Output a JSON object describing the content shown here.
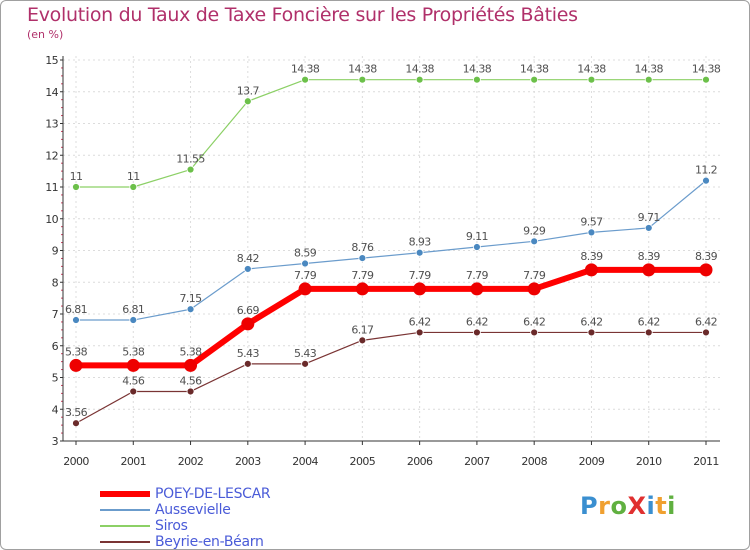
{
  "header": {
    "title": "Evolution du Taux de Taxe Foncière sur les Propriétés Bâties",
    "unit": "(en %)"
  },
  "logo": {
    "text": "ProXiti",
    "letters": [
      {
        "char": "P",
        "color": "#3a8fd0"
      },
      {
        "char": "r",
        "color": "#f0a030"
      },
      {
        "char": "o",
        "color": "#60b040"
      },
      {
        "char": "X",
        "color": "#e03030"
      },
      {
        "char": "i",
        "color": "#3a8fd0"
      },
      {
        "char": "t",
        "color": "#f0a030"
      },
      {
        "char": "i",
        "color": "#60b040"
      }
    ]
  },
  "chart_data": {
    "type": "line",
    "title": "Evolution du Taux de Taxe Foncière sur les Propriétés Bâties",
    "ylabel": "(en %)",
    "xlabel": "",
    "x": [
      "2000",
      "2001",
      "2002",
      "2003",
      "2004",
      "2005",
      "2006",
      "2007",
      "2008",
      "2009",
      "2010",
      "2011"
    ],
    "ylim": [
      3,
      15
    ],
    "yticks": [
      3,
      4,
      5,
      6,
      7,
      8,
      9,
      10,
      11,
      12,
      13,
      14,
      15
    ],
    "grid": true,
    "legend_position": "bottom-left",
    "series": [
      {
        "name": "Siros",
        "color": "#8cd066",
        "marker": "#6cc04a",
        "width": 1.2,
        "marker_r": 3.5,
        "values": [
          11,
          11,
          11.55,
          13.7,
          14.38,
          14.38,
          14.38,
          14.38,
          14.38,
          14.38,
          14.38,
          14.38
        ],
        "labels": [
          "11",
          "11",
          "11.55",
          "13.7",
          "14.38",
          "14.38",
          "14.38",
          "14.38",
          "14.38",
          "14.38",
          "14.38",
          "14.38"
        ]
      },
      {
        "name": "Aussevielle",
        "color": "#6b9ccc",
        "marker": "#4a88c0",
        "width": 1.2,
        "marker_r": 3.5,
        "values": [
          6.81,
          6.81,
          7.15,
          8.42,
          8.59,
          8.76,
          8.93,
          9.11,
          9.29,
          9.57,
          9.71,
          11.2
        ],
        "labels": [
          "6.81",
          "6.81",
          "7.15",
          "8.42",
          "8.59",
          "8.76",
          "8.93",
          "9.11",
          "9.29",
          "9.57",
          "9.71",
          "11.2"
        ]
      },
      {
        "name": "Beyrie-en-Béarn",
        "color": "#7a3434",
        "marker": "#6a2a2a",
        "width": 1.2,
        "marker_r": 3.5,
        "values": [
          3.56,
          4.56,
          4.56,
          5.43,
          5.43,
          6.17,
          6.42,
          6.42,
          6.42,
          6.42,
          6.42,
          6.42
        ],
        "labels": [
          "3.56",
          "4.56",
          "4.56",
          "5.43",
          "5.43",
          "6.17",
          "6.42",
          "6.42",
          "6.42",
          "6.42",
          "6.42",
          "6.42"
        ]
      },
      {
        "name": "POEY-DE-LESCAR",
        "color": "#ff0000",
        "marker": "#ee0000",
        "width": 6,
        "marker_r": 6.5,
        "values": [
          5.38,
          5.38,
          5.38,
          6.69,
          7.79,
          7.79,
          7.79,
          7.79,
          7.79,
          8.39,
          8.39,
          8.39
        ],
        "labels": [
          "5.38",
          "5.38",
          "5.38",
          "6.69",
          "7.79",
          "7.79",
          "7.79",
          "7.79",
          "7.79",
          "8.39",
          "8.39",
          "8.39"
        ]
      }
    ],
    "legend": [
      {
        "name": "POEY-DE-LESCAR",
        "color": "#ff0000",
        "width": 6
      },
      {
        "name": "Aussevielle",
        "color": "#6b9ccc",
        "width": 2
      },
      {
        "name": "Siros",
        "color": "#8cd066",
        "width": 2
      },
      {
        "name": "Beyrie-en-Béarn",
        "color": "#7a3434",
        "width": 2
      }
    ]
  }
}
